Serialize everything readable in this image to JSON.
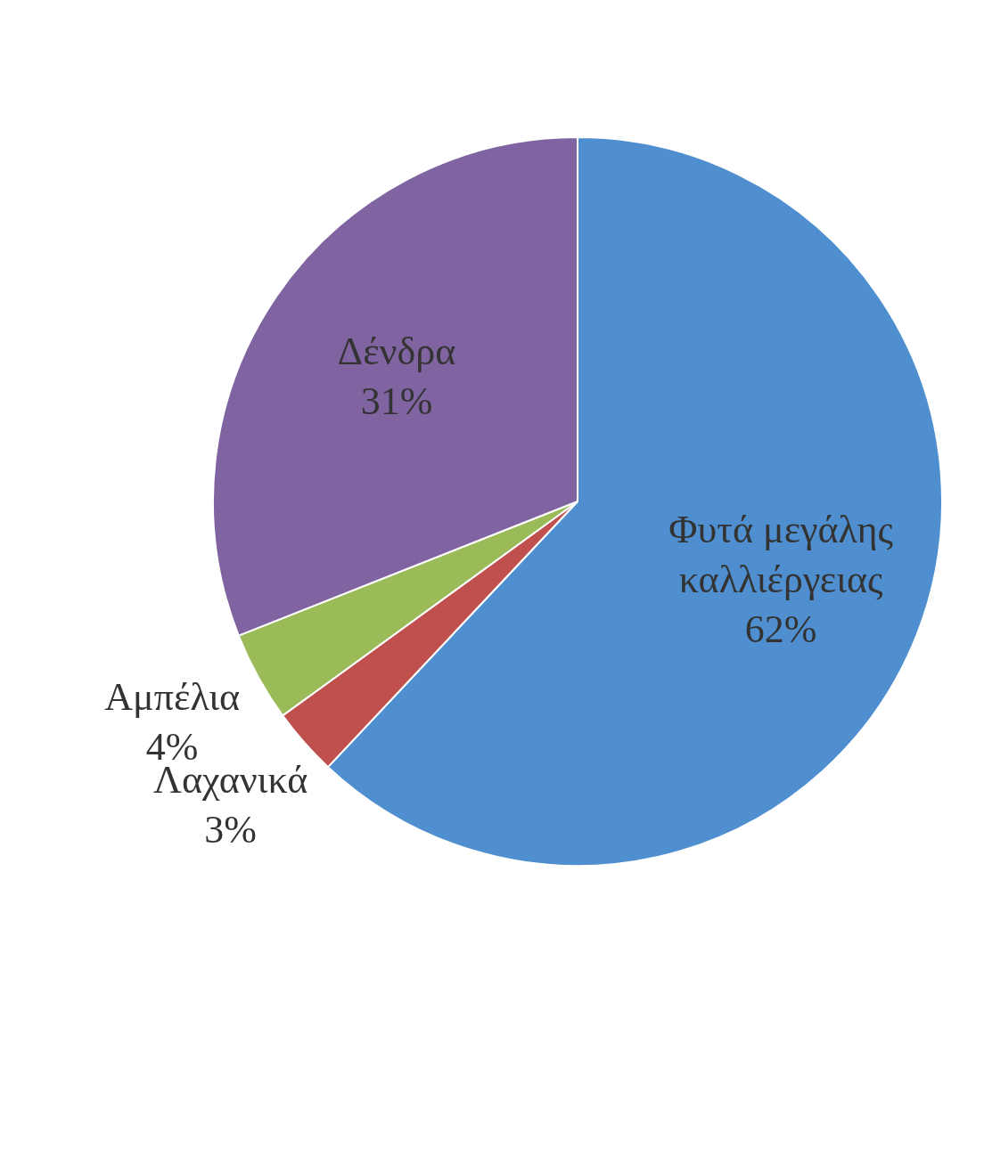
{
  "chart_data": {
    "type": "pie",
    "categories": [
      "Φυτά μεγάλης καλλιέργειας",
      "Λαχανικά",
      "Αμπέλια",
      "Δένδρα"
    ],
    "values": [
      62,
      3,
      4,
      31
    ],
    "colors": [
      "#4f8fcf",
      "#c0504d",
      "#9bbb59",
      "#8064a2"
    ],
    "value_labels": [
      "62%",
      "3%",
      "4%",
      "31%"
    ],
    "legend": false
  }
}
